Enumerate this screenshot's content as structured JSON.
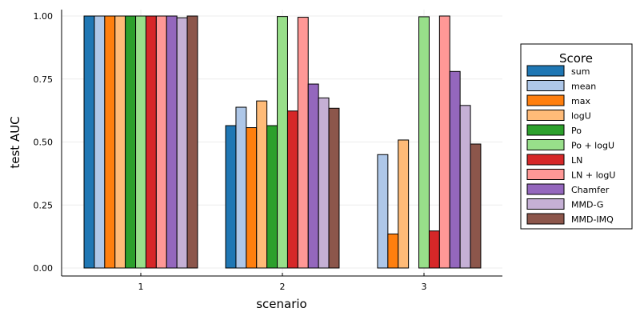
{
  "chart_data": {
    "type": "bar",
    "xlabel": "scenario",
    "ylabel": "test AUC",
    "categories": [
      "1",
      "2",
      "3"
    ],
    "ylim": [
      0,
      1.0
    ],
    "yticks": [
      "0.00",
      "0.25",
      "0.50",
      "0.75",
      "1.00"
    ],
    "ytick_values": [
      0,
      0.25,
      0.5,
      0.75,
      1.0
    ],
    "grid": true,
    "legend": {
      "title": "Score",
      "placement": "right"
    },
    "series": [
      {
        "name": "sum",
        "color": "#1f77b4",
        "values": [
          1.0,
          0.565,
          0.0
        ]
      },
      {
        "name": "mean",
        "color": "#aec7e8",
        "values": [
          1.0,
          0.638,
          0.45
        ]
      },
      {
        "name": "max",
        "color": "#ff7f0e",
        "values": [
          1.0,
          0.557,
          0.135
        ]
      },
      {
        "name": "logU",
        "color": "#ffbb78",
        "values": [
          1.0,
          0.663,
          0.508
        ]
      },
      {
        "name": "Po",
        "color": "#2ca02c",
        "values": [
          1.0,
          0.565,
          0.0
        ]
      },
      {
        "name": "Po + logU",
        "color": "#98df8a",
        "values": [
          1.0,
          0.998,
          0.997
        ]
      },
      {
        "name": "LN",
        "color": "#d62728",
        "values": [
          1.0,
          0.623,
          0.147
        ]
      },
      {
        "name": "LN + logU",
        "color": "#ff9896",
        "values": [
          1.0,
          0.995,
          1.0
        ]
      },
      {
        "name": "Chamfer",
        "color": "#9467bd",
        "values": [
          1.0,
          0.73,
          0.78
        ]
      },
      {
        "name": "MMD-G",
        "color": "#c5b0d5",
        "values": [
          0.993,
          0.675,
          0.645
        ]
      },
      {
        "name": "MMD-IMQ",
        "color": "#8c564b",
        "values": [
          1.0,
          0.634,
          0.492
        ]
      }
    ]
  }
}
